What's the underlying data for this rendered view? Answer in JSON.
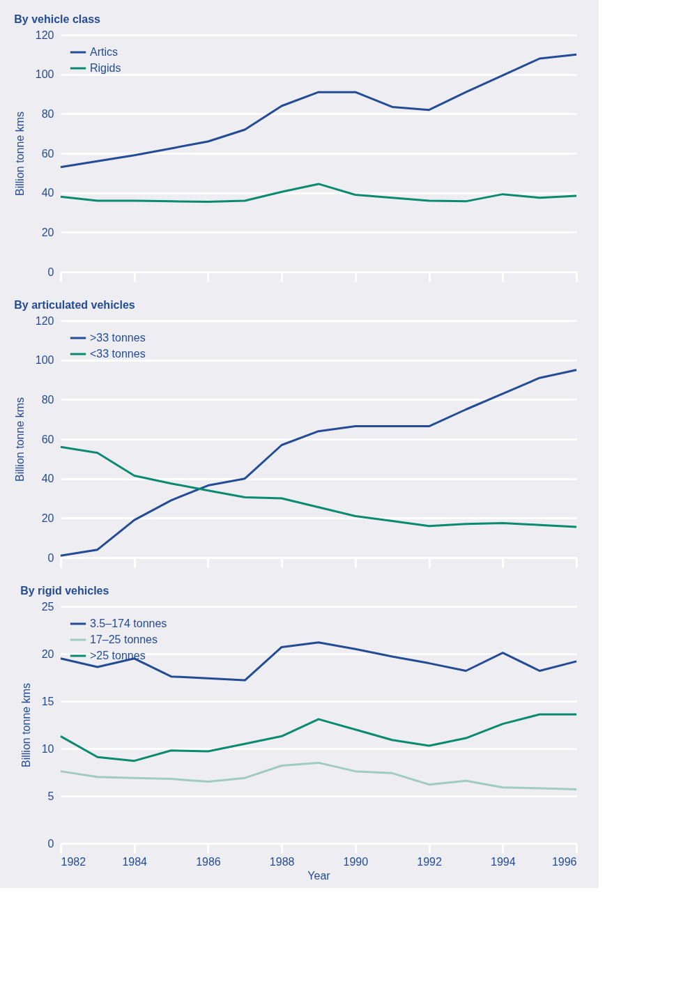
{
  "chart_data": [
    {
      "type": "line",
      "title": "By vehicle class",
      "ylabel": "Billion tonne kms",
      "x": [
        1982,
        1983,
        1984,
        1985,
        1986,
        1987,
        1988,
        1989,
        1990,
        1991,
        1992,
        1993,
        1994,
        1995,
        1996
      ],
      "xlim": [
        1982,
        1996
      ],
      "xticks": [
        1982,
        1984,
        1986,
        1988,
        1990,
        1992,
        1994,
        1996
      ],
      "ylim": [
        0,
        120
      ],
      "yticks": [
        0,
        20,
        40,
        60,
        80,
        100,
        120
      ],
      "grid": "y",
      "legend": "top left",
      "tick_labels": "y",
      "series": [
        {
          "name": "Artics",
          "color": "#244c94",
          "values": [
            53,
            56,
            59,
            62.5,
            66,
            72,
            84,
            91,
            91,
            83.5,
            82,
            91,
            99.5,
            108,
            110
          ]
        },
        {
          "name": "Rigids",
          "color": "#0a8a6e",
          "values": [
            38,
            36,
            36,
            35.7,
            35.5,
            36,
            40.5,
            44.5,
            39,
            37.5,
            36,
            35.7,
            39.3,
            37.5,
            38.5
          ]
        }
      ]
    },
    {
      "type": "line",
      "title": "By articulated vehicles",
      "ylabel": "Billion tonne kms",
      "x": [
        1982,
        1983,
        1984,
        1985,
        1986,
        1987,
        1988,
        1989,
        1990,
        1991,
        1992,
        1993,
        1994,
        1995,
        1996
      ],
      "xlim": [
        1982,
        1996
      ],
      "xticks": [
        1982,
        1984,
        1986,
        1988,
        1990,
        1992,
        1994,
        1996
      ],
      "ylim": [
        0,
        120
      ],
      "yticks": [
        0,
        20,
        40,
        60,
        80,
        100,
        120
      ],
      "grid": "y",
      "legend": "top left",
      "tick_labels": "y",
      "series": [
        {
          "name": ">33 tonnes",
          "color": "#244c94",
          "values": [
            1,
            4,
            19,
            29,
            36.5,
            40,
            57,
            64,
            66.5,
            66.5,
            66.5,
            75,
            83,
            91,
            95
          ]
        },
        {
          "name": "<33 tonnes",
          "color": "#0a8a6e",
          "values": [
            56,
            53,
            41.5,
            37.5,
            34,
            30.5,
            30,
            25.5,
            21,
            18.5,
            16,
            17,
            17.5,
            16.5,
            15.5
          ]
        }
      ]
    },
    {
      "type": "line",
      "title": "By rigid vehicles",
      "ylabel": "Billion tonne kms",
      "xlabel": "Year",
      "x": [
        1982,
        1983,
        1984,
        1985,
        1986,
        1987,
        1988,
        1989,
        1990,
        1991,
        1992,
        1993,
        1994,
        1995,
        1996
      ],
      "xlim": [
        1982,
        1996
      ],
      "xticks": [
        1982,
        1984,
        1986,
        1988,
        1990,
        1992,
        1994,
        1996
      ],
      "ylim": [
        0,
        25
      ],
      "yticks": [
        0,
        5,
        10,
        15,
        20,
        25
      ],
      "grid": "y",
      "legend": "top left",
      "series": [
        {
          "name": "3.5–174 tonnes",
          "color": "#244c94",
          "values": [
            19.5,
            18.6,
            19.5,
            17.6,
            17.4,
            17.2,
            20.7,
            21.2,
            20.5,
            19.7,
            19.0,
            18.2,
            20.1,
            18.2,
            19.2
          ]
        },
        {
          "name": "17–25 tonnes",
          "color": "#a0cbc0",
          "values": [
            7.6,
            7.0,
            6.9,
            6.8,
            6.5,
            6.9,
            8.2,
            8.5,
            7.6,
            7.4,
            6.2,
            6.6,
            5.9,
            5.8,
            5.7
          ]
        },
        {
          "name": ">25 tonnes",
          "color": "#0a8a6e",
          "values": [
            11.3,
            9.1,
            8.7,
            9.8,
            9.7,
            10.5,
            11.3,
            13.1,
            12.0,
            10.9,
            10.3,
            11.1,
            12.6,
            13.6,
            13.6
          ]
        }
      ]
    }
  ]
}
